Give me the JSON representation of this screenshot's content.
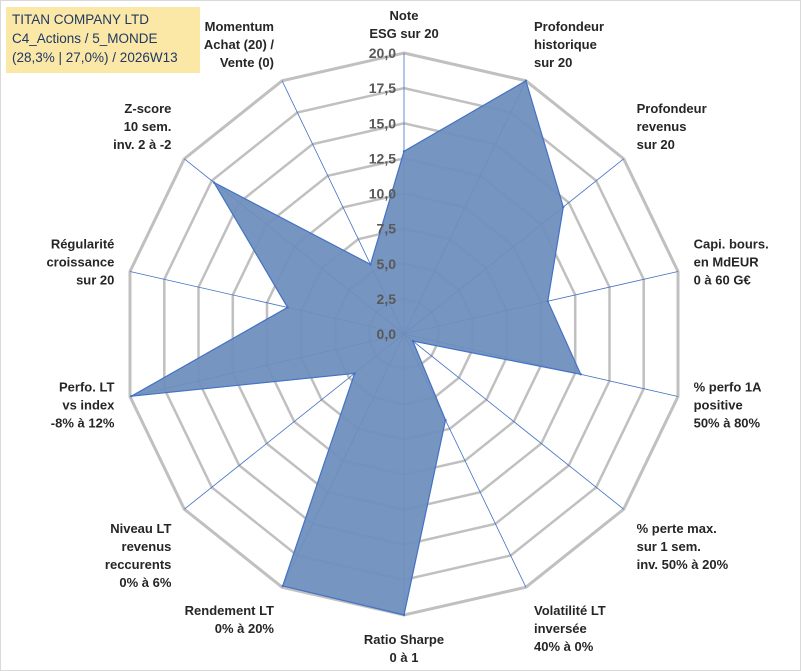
{
  "chart_data": {
    "type": "radar",
    "title_lines": [
      "TITAN COMPANY LTD",
      "C4_Actions / 5_MONDE",
      "(28,3% | 27,0%) / 2026W13"
    ],
    "r_range": [
      0,
      20
    ],
    "r_ticks": [
      "0,0",
      "2,5",
      "5,0",
      "7,5",
      "10,0",
      "12,5",
      "15,0",
      "17,5",
      "20,0"
    ],
    "axes": [
      {
        "label": [
          "Note",
          "ESG sur 20"
        ],
        "value": 13
      },
      {
        "label": [
          "Profondeur",
          "historique",
          "sur 20"
        ],
        "value": 20
      },
      {
        "label": [
          "Profondeur",
          "revenus",
          "sur 20"
        ],
        "value": 14.5
      },
      {
        "label": [
          "Capi. bours.",
          "en MdEUR",
          "0 à 60 G€"
        ],
        "value": 10.5
      },
      {
        "label": [
          "% perfo 1A",
          "positive",
          "50% à 80%"
        ],
        "value": 12.9
      },
      {
        "label": [
          "% perte max.",
          "sur 1 sem.",
          "inv. 50% à 20%"
        ],
        "value": 0.8
      },
      {
        "label": [
          "Volatilité LT",
          "inversée",
          "40% à 0%"
        ],
        "value": 6.8
      },
      {
        "label": [
          "Ratio Sharpe",
          "0 à 1"
        ],
        "value": 20
      },
      {
        "label": [
          "Rendement LT",
          "0% à 20%"
        ],
        "value": 19.9
      },
      {
        "label": [
          "Niveau LT",
          "revenus",
          "reccurents",
          "0% à 6%"
        ],
        "value": 4.5
      },
      {
        "label": [
          "Perfo. LT",
          "vs index",
          "-8% à 12%"
        ],
        "value": 19.9
      },
      {
        "label": [
          "Régularité",
          "croissance",
          "sur 20"
        ],
        "value": 8.5
      },
      {
        "label": [
          "Z-score",
          "10 sem.",
          "inv. 2 à -2"
        ],
        "value": 17.3
      },
      {
        "label": [
          "Momentum",
          "Achat (20) /",
          "Vente (0)"
        ],
        "value": 5.5
      }
    ],
    "grid": true,
    "series": [
      {
        "name": "TITAN COMPANY LTD",
        "color": "#5b82b8"
      }
    ],
    "colors": {
      "fill": "#6f8fbd",
      "stroke": "#4472c4",
      "grid": "#c0c0c0",
      "spoke": "#4472c4"
    }
  }
}
